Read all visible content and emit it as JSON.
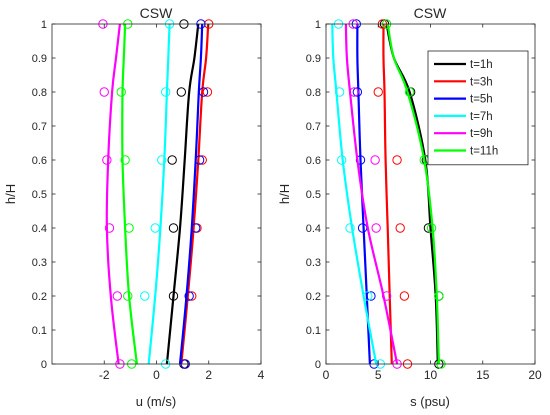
{
  "chart_data": [
    {
      "type": "line",
      "title": "CSW",
      "xlabel": "u (m/s)",
      "ylabel": "h/H",
      "xlim": [
        -4,
        4
      ],
      "ylim": [
        0,
        1
      ],
      "xticks": [
        -2,
        0,
        2,
        4
      ],
      "yticks": [
        0,
        0.1,
        0.2,
        0.3,
        0.4,
        0.5,
        0.6,
        0.7,
        0.8,
        0.9,
        1
      ],
      "grid": false,
      "series": [
        {
          "name": "t=1h",
          "color": "#000000",
          "line": {
            "x": [
              0.4,
              0.65,
              0.9,
              1.08,
              1.25,
              1.45,
              1.6
            ],
            "y": [
              0,
              0.2,
              0.4,
              0.6,
              0.8,
              0.9,
              1
            ]
          },
          "markers": {
            "x": [
              1.05,
              0.65,
              0.65,
              0.6,
              0.95,
              1.05
            ],
            "y": [
              0,
              0.2,
              0.4,
              0.6,
              0.8,
              1
            ]
          }
        },
        {
          "name": "t=3h",
          "color": "#ff0000",
          "line": {
            "x": [
              0.95,
              1.2,
              1.42,
              1.6,
              1.75,
              1.9,
              1.98
            ],
            "y": [
              0,
              0.2,
              0.4,
              0.6,
              0.8,
              0.9,
              1
            ]
          },
          "markers": {
            "x": [
              1.1,
              1.35,
              1.55,
              1.75,
              1.95,
              2.0
            ],
            "y": [
              0,
              0.2,
              0.4,
              0.6,
              0.8,
              1
            ]
          }
        },
        {
          "name": "t=5h",
          "color": "#0000ff",
          "line": {
            "x": [
              0.9,
              1.15,
              1.35,
              1.5,
              1.62,
              1.7,
              1.75
            ],
            "y": [
              0,
              0.2,
              0.4,
              0.6,
              0.8,
              0.9,
              1
            ]
          },
          "markers": {
            "x": [
              1.1,
              1.25,
              1.5,
              1.65,
              1.8,
              1.7
            ],
            "y": [
              0,
              0.2,
              0.4,
              0.6,
              0.8,
              1
            ]
          }
        },
        {
          "name": "t=7h",
          "color": "#00ffff",
          "line": {
            "x": [
              -0.3,
              -0.05,
              0.15,
              0.3,
              0.4,
              0.45,
              0.5
            ],
            "y": [
              0,
              0.2,
              0.4,
              0.6,
              0.8,
              0.9,
              1
            ]
          },
          "markers": {
            "x": [
              0.35,
              -0.45,
              -0.05,
              0.2,
              0.35,
              0.5
            ],
            "y": [
              0,
              0.2,
              0.4,
              0.6,
              0.8,
              1
            ]
          }
        },
        {
          "name": "t=9h",
          "color": "#ff00ff",
          "line": {
            "x": [
              -1.45,
              -1.75,
              -1.9,
              -1.85,
              -1.7,
              -1.55,
              -1.4
            ],
            "y": [
              0,
              0.2,
              0.4,
              0.6,
              0.8,
              0.9,
              1
            ]
          },
          "markers": {
            "x": [
              -1.4,
              -1.5,
              -1.8,
              -1.9,
              -2.0,
              -2.05
            ],
            "y": [
              0,
              0.2,
              0.4,
              0.6,
              0.8,
              1
            ]
          }
        },
        {
          "name": "t=11h",
          "color": "#00ff00",
          "line": {
            "x": [
              -0.75,
              -1.05,
              -1.2,
              -1.3,
              -1.3,
              -1.25,
              -1.2
            ],
            "y": [
              0,
              0.2,
              0.4,
              0.6,
              0.8,
              0.9,
              1
            ]
          },
          "markers": {
            "x": [
              -0.95,
              -1.1,
              -1.05,
              -1.2,
              -1.35,
              -1.1
            ],
            "y": [
              0,
              0.2,
              0.4,
              0.6,
              0.8,
              1
            ]
          }
        }
      ]
    },
    {
      "type": "line",
      "title": "CSW",
      "xlabel": "s (psu)",
      "ylabel": "h/H",
      "xlim": [
        0,
        20
      ],
      "ylim": [
        0,
        1
      ],
      "xticks": [
        0,
        5,
        10,
        15,
        20
      ],
      "yticks": [
        0,
        0.1,
        0.2,
        0.3,
        0.4,
        0.5,
        0.6,
        0.7,
        0.8,
        0.9,
        1
      ],
      "grid": false,
      "legend": {
        "position": "top-right",
        "entries": [
          "t=1h",
          "t=3h",
          "t=5h",
          "t=7h",
          "t=9h",
          "t=11h"
        ]
      },
      "series": [
        {
          "name": "t=1h",
          "color": "#000000",
          "line": {
            "x": [
              10.7,
              10.5,
              10.0,
              9.5,
              8.0,
              6.5,
              5.8
            ],
            "y": [
              0,
              0.2,
              0.4,
              0.6,
              0.8,
              0.9,
              1
            ]
          },
          "markers": {
            "x": [
              10.8,
              10.8,
              9.8,
              9.6,
              8.1,
              5.6
            ],
            "y": [
              0,
              0.2,
              0.4,
              0.6,
              0.8,
              1
            ]
          }
        },
        {
          "name": "t=3h",
          "color": "#ff0000",
          "line": {
            "x": [
              6.3,
              6.1,
              5.9,
              5.7,
              5.6,
              5.5,
              5.5
            ],
            "y": [
              0,
              0.2,
              0.4,
              0.6,
              0.8,
              0.9,
              1
            ]
          },
          "markers": {
            "x": [
              7.8,
              7.5,
              7.1,
              6.8,
              5.0,
              5.4
            ],
            "y": [
              0,
              0.2,
              0.4,
              0.6,
              0.8,
              1
            ]
          }
        },
        {
          "name": "t=5h",
          "color": "#0000ff",
          "line": {
            "x": [
              4.2,
              3.9,
              3.6,
              3.3,
              3.1,
              3.0,
              3.0
            ],
            "y": [
              0,
              0.2,
              0.4,
              0.6,
              0.8,
              0.9,
              1
            ]
          },
          "markers": {
            "x": [
              4.6,
              4.3,
              3.5,
              3.3,
              3.0,
              2.9
            ],
            "y": [
              0,
              0.2,
              0.4,
              0.6,
              0.8,
              1
            ]
          }
        },
        {
          "name": "t=7h",
          "color": "#00ffff",
          "line": {
            "x": [
              4.8,
              3.6,
              2.5,
              1.6,
              1.0,
              0.7,
              0.6
            ],
            "y": [
              0,
              0.2,
              0.4,
              0.6,
              0.8,
              0.9,
              1
            ]
          },
          "markers": {
            "x": [
              5.2,
              4.0,
              2.3,
              1.5,
              1.3,
              1.2
            ],
            "y": [
              0,
              0.2,
              0.4,
              0.6,
              0.8,
              1
            ]
          }
        },
        {
          "name": "t=9h",
          "color": "#ff00ff",
          "line": {
            "x": [
              6.8,
              5.5,
              4.0,
              3.0,
              2.3,
              2.0,
              1.9
            ],
            "y": [
              0,
              0.2,
              0.4,
              0.6,
              0.8,
              0.9,
              1
            ]
          },
          "markers": {
            "x": [
              6.8,
              5.8,
              4.8,
              4.7,
              2.7,
              2.6
            ],
            "y": [
              0,
              0.2,
              0.4,
              0.6,
              0.8,
              1
            ]
          }
        },
        {
          "name": "t=11h",
          "color": "#00ff00",
          "line": {
            "x": [
              10.8,
              10.6,
              10.2,
              9.4,
              7.8,
              6.5,
              5.9
            ],
            "y": [
              0,
              0.2,
              0.4,
              0.6,
              0.8,
              0.9,
              1
            ]
          },
          "markers": {
            "x": [
              11.0,
              10.8,
              10.1,
              9.4,
              8.0,
              5.8
            ],
            "y": [
              0,
              0.2,
              0.4,
              0.6,
              0.8,
              1
            ]
          }
        }
      ]
    }
  ]
}
